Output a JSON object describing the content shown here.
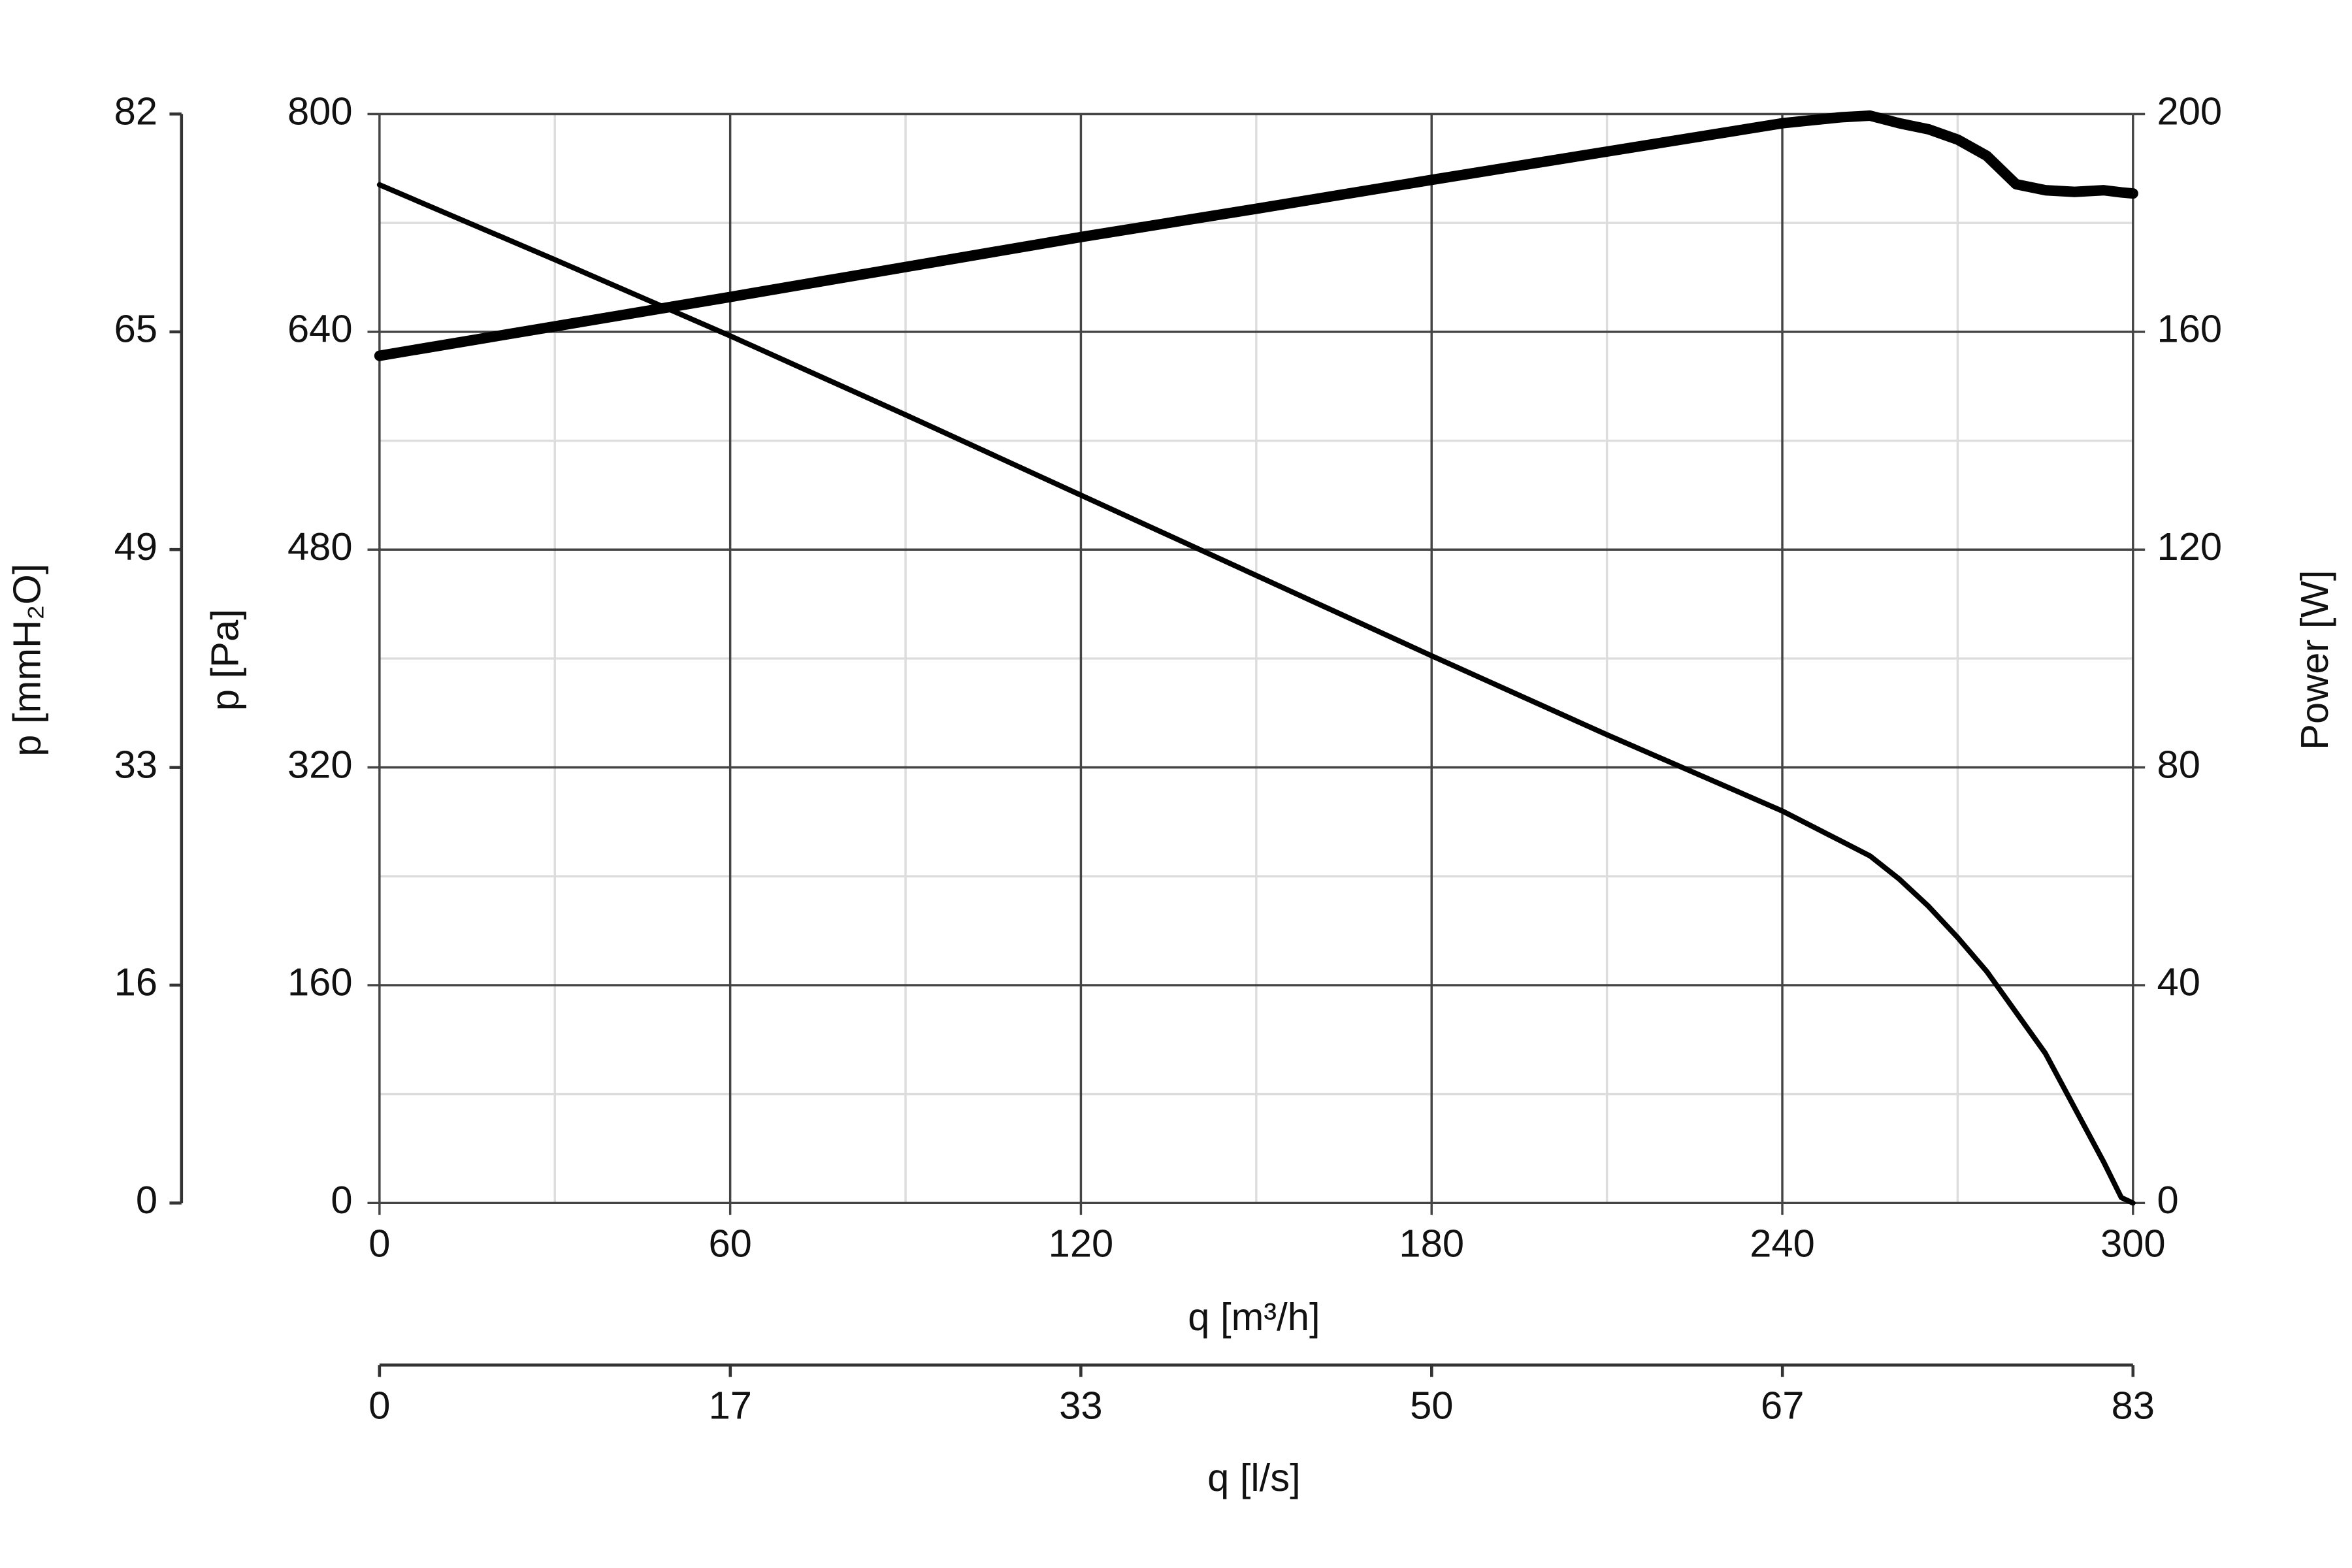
{
  "chart_data": {
    "type": "line",
    "x_label": "q [m³/h]",
    "y_label": "p [Pa]",
    "y2_label": "Power [W]",
    "y3_label": "p [mmH₂O]",
    "x2_label": "q [l/s]",
    "x": [
      0,
      30,
      60,
      90,
      120,
      150,
      180,
      210,
      240,
      250,
      255,
      260,
      265,
      270,
      275,
      280,
      285,
      290,
      295,
      298,
      300
    ],
    "series": [
      {
        "color": "#000000",
        "line_width": 3.5,
        "axis": "y",
        "values": [
          748,
          693,
          637,
          579,
          520,
          461,
          402,
          344,
          288,
          266,
          255,
          238,
          218,
          195,
          170,
          140,
          110,
          70,
          30,
          4,
          0
        ]
      },
      {
        "color": "#000000",
        "line_width": 7,
        "axis": "y2",
        "values": [
          155.6,
          161,
          166.4,
          171.9,
          177.4,
          182.6,
          187.9,
          193.1,
          198.3,
          199.4,
          199.7,
          198.3,
          197.2,
          195.3,
          192.3,
          187.1,
          186,
          185.7,
          186,
          185.6,
          185.4
        ]
      }
    ],
    "xlim": [
      0,
      300
    ],
    "xticks": [
      0,
      60,
      120,
      180,
      240,
      300
    ],
    "minor_xticks": [
      30,
      90,
      150,
      210,
      270
    ],
    "ylim": [
      0,
      800
    ],
    "yticks": [
      0,
      160,
      320,
      480,
      640,
      800
    ],
    "minor_yticks": [
      80,
      240,
      400,
      560,
      720
    ],
    "y2lim": [
      0,
      200
    ],
    "y2ticks": [
      0,
      40,
      80,
      120,
      160,
      200
    ],
    "y3lim": [
      0,
      81.58
    ],
    "y3ticks": [
      0,
      {
        "value": 16.32,
        "label": "16"
      },
      {
        "value": 32.63,
        "label": "33"
      },
      {
        "value": 48.95,
        "label": "49"
      },
      {
        "value": 65.26,
        "label": "65"
      },
      {
        "value": 81.58,
        "label": "82"
      }
    ],
    "x2lim": [
      0,
      83.33
    ],
    "x2ticks": [
      0,
      {
        "value": 16.67,
        "label": "17"
      },
      {
        "value": 33.33,
        "label": "33"
      },
      50,
      {
        "value": 66.67,
        "label": "67"
      },
      {
        "value": 83.33,
        "label": "83"
      }
    ],
    "grid": true,
    "grid_color": "#444444",
    "minor_grid_color": "#dddddd"
  }
}
